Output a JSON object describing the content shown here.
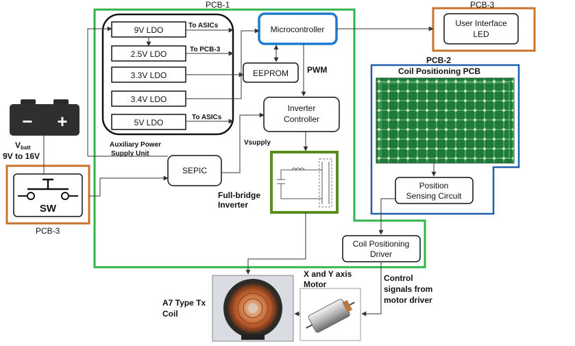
{
  "regions": {
    "pcb1": "PCB-1",
    "pcb2": "PCB-2",
    "pcb3_left": "PCB-3",
    "pcb3_right": "PCB-3"
  },
  "blocks": {
    "ldo_9v": "9V LDO",
    "ldo_2v5": "2.5V LDO",
    "ldo_3v3": "3.3V LDO",
    "ldo_3v4": "3.4V LDO",
    "ldo_5v": "5V LDO",
    "aux_supply_line1": "Auxiliary Power",
    "aux_supply_line2": "Supply Unit",
    "microcontroller": "Microcontroller",
    "eeprom": "EEPROM",
    "inverter_controller_line1": "Inverter",
    "inverter_controller_line2": "Controller",
    "sepic": "SEPIC",
    "full_bridge_line1": "Full-bridge",
    "full_bridge_line2": "Inverter",
    "user_interface_line1": "User Interface",
    "user_interface_line2": "LED",
    "coil_positioning_pcb": "Coil Positioning PCB",
    "position_sensing_line1": "Position",
    "position_sensing_line2": "Sensing Circuit",
    "coil_driver_line1": "Coil Positioning",
    "coil_driver_line2": "Driver",
    "switch": "SW",
    "motor_line1": "X and Y axis",
    "motor_line2": "Motor",
    "tx_coil_line1": "A7 Type Tx",
    "tx_coil_line2": "Coil"
  },
  "signals": {
    "to_asics_top": "To ASICs",
    "to_pcb3": "To PCB-3",
    "to_asics_bottom": "To ASICs",
    "pwm": "PWM",
    "vsupply": "Vsupply",
    "control_line1": "Control",
    "control_line2": "signals from",
    "control_line3": "motor driver"
  },
  "battery": {
    "vbatt_main": "V",
    "vbatt_sub": "batt",
    "range": "9V to 16V",
    "minus": "−",
    "plus": "+"
  },
  "colors": {
    "pcb1_border": "#2fb34a",
    "pcb2_border": "#1f5fa8",
    "pcb3_border": "#c8732b",
    "micro_border": "#1a7bd1",
    "inverter_border": "#5b8c1e",
    "line": "#333333"
  }
}
